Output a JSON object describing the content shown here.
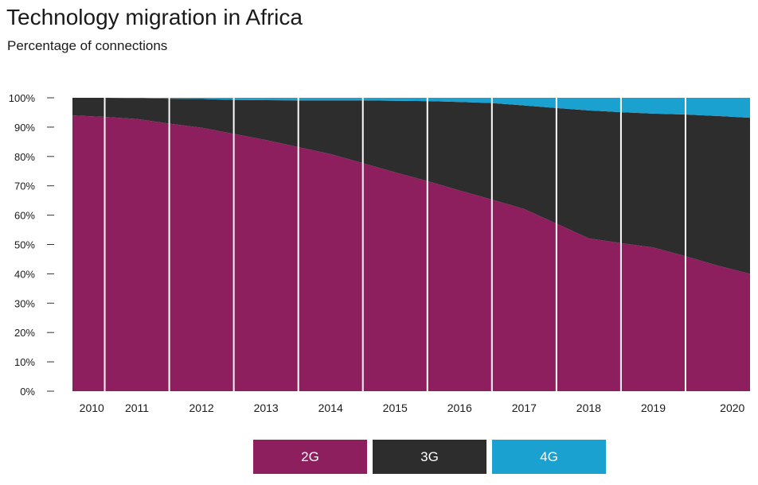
{
  "chart_data": {
    "type": "area",
    "title": "Technology migration in Africa",
    "subtitle": "Percentage of connections",
    "categories": [
      "2010",
      "2011",
      "2012",
      "2013",
      "2014",
      "2015",
      "2016",
      "2017",
      "2018",
      "2019",
      "2020"
    ],
    "x": [
      2010,
      2010.5,
      2011,
      2011.5,
      2012,
      2012.5,
      2013,
      2013.5,
      2014,
      2014.5,
      2015,
      2015.5,
      2016,
      2016.5,
      2017,
      2017.5,
      2018,
      2018.5,
      2019,
      2019.5,
      2020,
      2020.5
    ],
    "series": [
      {
        "name": "2G",
        "color": "#8e1f5f",
        "values": [
          94,
          93.5,
          92.8,
          91.2,
          89.8,
          87.7,
          85.6,
          83.2,
          80.8,
          77.7,
          74.6,
          71.6,
          68.4,
          65.3,
          62.1,
          57.1,
          52.1,
          50.5,
          49.0,
          46.0,
          42.8,
          40.0
        ]
      },
      {
        "name": "3G",
        "color": "#2d2d2d",
        "values": [
          6,
          6.5,
          7.1,
          8.5,
          9.8,
          11.6,
          13.6,
          15.9,
          18.3,
          21.4,
          24.4,
          27.3,
          30.2,
          32.9,
          35.3,
          39.4,
          43.6,
          44.6,
          45.6,
          48.3,
          51.0,
          53.2
        ]
      },
      {
        "name": "4G",
        "color": "#1aa1cf",
        "values": [
          0,
          0,
          0.1,
          0.3,
          0.4,
          0.7,
          0.8,
          0.9,
          0.9,
          0.9,
          1.0,
          1.1,
          1.4,
          1.8,
          2.6,
          3.5,
          4.3,
          4.9,
          5.4,
          5.7,
          6.2,
          6.8
        ]
      }
    ],
    "yticks": [
      "0%",
      "10%",
      "20%",
      "30%",
      "40%",
      "50%",
      "60%",
      "70%",
      "80%",
      "90%",
      "100%"
    ],
    "ylim": [
      0,
      100
    ],
    "xlim": [
      2010,
      2020.5
    ],
    "grid": false,
    "legend_position": "bottom-center"
  },
  "legend": [
    {
      "label": "2G",
      "color": "#8e1f5f"
    },
    {
      "label": "3G",
      "color": "#2d2d2d"
    },
    {
      "label": "4G",
      "color": "#1aa1cf"
    }
  ]
}
